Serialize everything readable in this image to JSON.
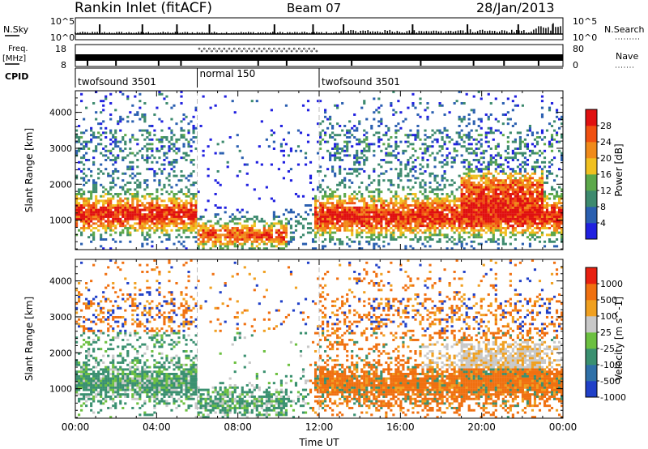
{
  "header": {
    "title": "Rankin Inlet (fitACF)",
    "beam": "Beam 07",
    "date": "28/Jan/2013"
  },
  "panels_top": {
    "nsky_label": "N.Sky",
    "nsearch_label": "N.Search",
    "nsky_ticks": [
      "10^5",
      "10^0"
    ],
    "nsearch_ticks": [
      "10^5",
      "10^0"
    ],
    "freq_label": "Freq.",
    "freq_unit": "[MHz]",
    "freq_ticks": [
      "18",
      "8"
    ],
    "nave_label": "Nave",
    "nave_ticks": [
      "80",
      "0"
    ],
    "cpid_label": "CPID",
    "cpid_segments": [
      {
        "label": "twofsound 3501",
        "start_hour": 0,
        "end_hour": 6
      },
      {
        "label": "normal 150",
        "start_hour": 6,
        "end_hour": 12
      },
      {
        "label": "twofsound 3501",
        "start_hour": 12,
        "end_hour": 24
      }
    ]
  },
  "colors": {
    "power_scale": [
      "#2020e0",
      "#2a5fb0",
      "#3d8a6e",
      "#5ca84a",
      "#f0c020",
      "#f08a1a",
      "#f05010",
      "#e01010"
    ],
    "velocity_scale": [
      "#2040c8",
      "#2f70a8",
      "#3a9070",
      "#6cc040",
      "#c8c8c8",
      "#f0a020",
      "#f07010",
      "#e82010"
    ]
  },
  "chart_data": [
    {
      "type": "heatmap",
      "title": "",
      "xlabel": "",
      "ylabel": "Slant Range [km]",
      "xlim": [
        0,
        24
      ],
      "ylim": [
        180,
        4600
      ],
      "x_ticks": [
        "00:00",
        "04:00",
        "08:00",
        "12:00",
        "16:00",
        "20:00",
        "00:00"
      ],
      "y_ticks": [
        "1000",
        "2000",
        "3000",
        "4000"
      ],
      "colorbar_label": "Power [dB]",
      "colorbar_ticks": [
        "28",
        "24",
        "20",
        "16",
        "12",
        "8",
        "4"
      ],
      "colorbar_range": [
        0,
        32
      ]
    },
    {
      "type": "heatmap",
      "title": "",
      "xlabel": "Time UT",
      "ylabel": "Slant Range [km]",
      "xlim": [
        0,
        24
      ],
      "ylim": [
        180,
        4600
      ],
      "x_ticks": [
        "00:00",
        "04:00",
        "08:00",
        "12:00",
        "16:00",
        "20:00",
        "00:00"
      ],
      "y_ticks": [
        "1000",
        "2000",
        "3000",
        "4000"
      ],
      "colorbar_label": "Velocity [m s^-1]",
      "colorbar_ticks": [
        "1000",
        "500",
        "100",
        "25",
        "-25",
        "-100",
        "-500",
        "-1000"
      ]
    }
  ]
}
